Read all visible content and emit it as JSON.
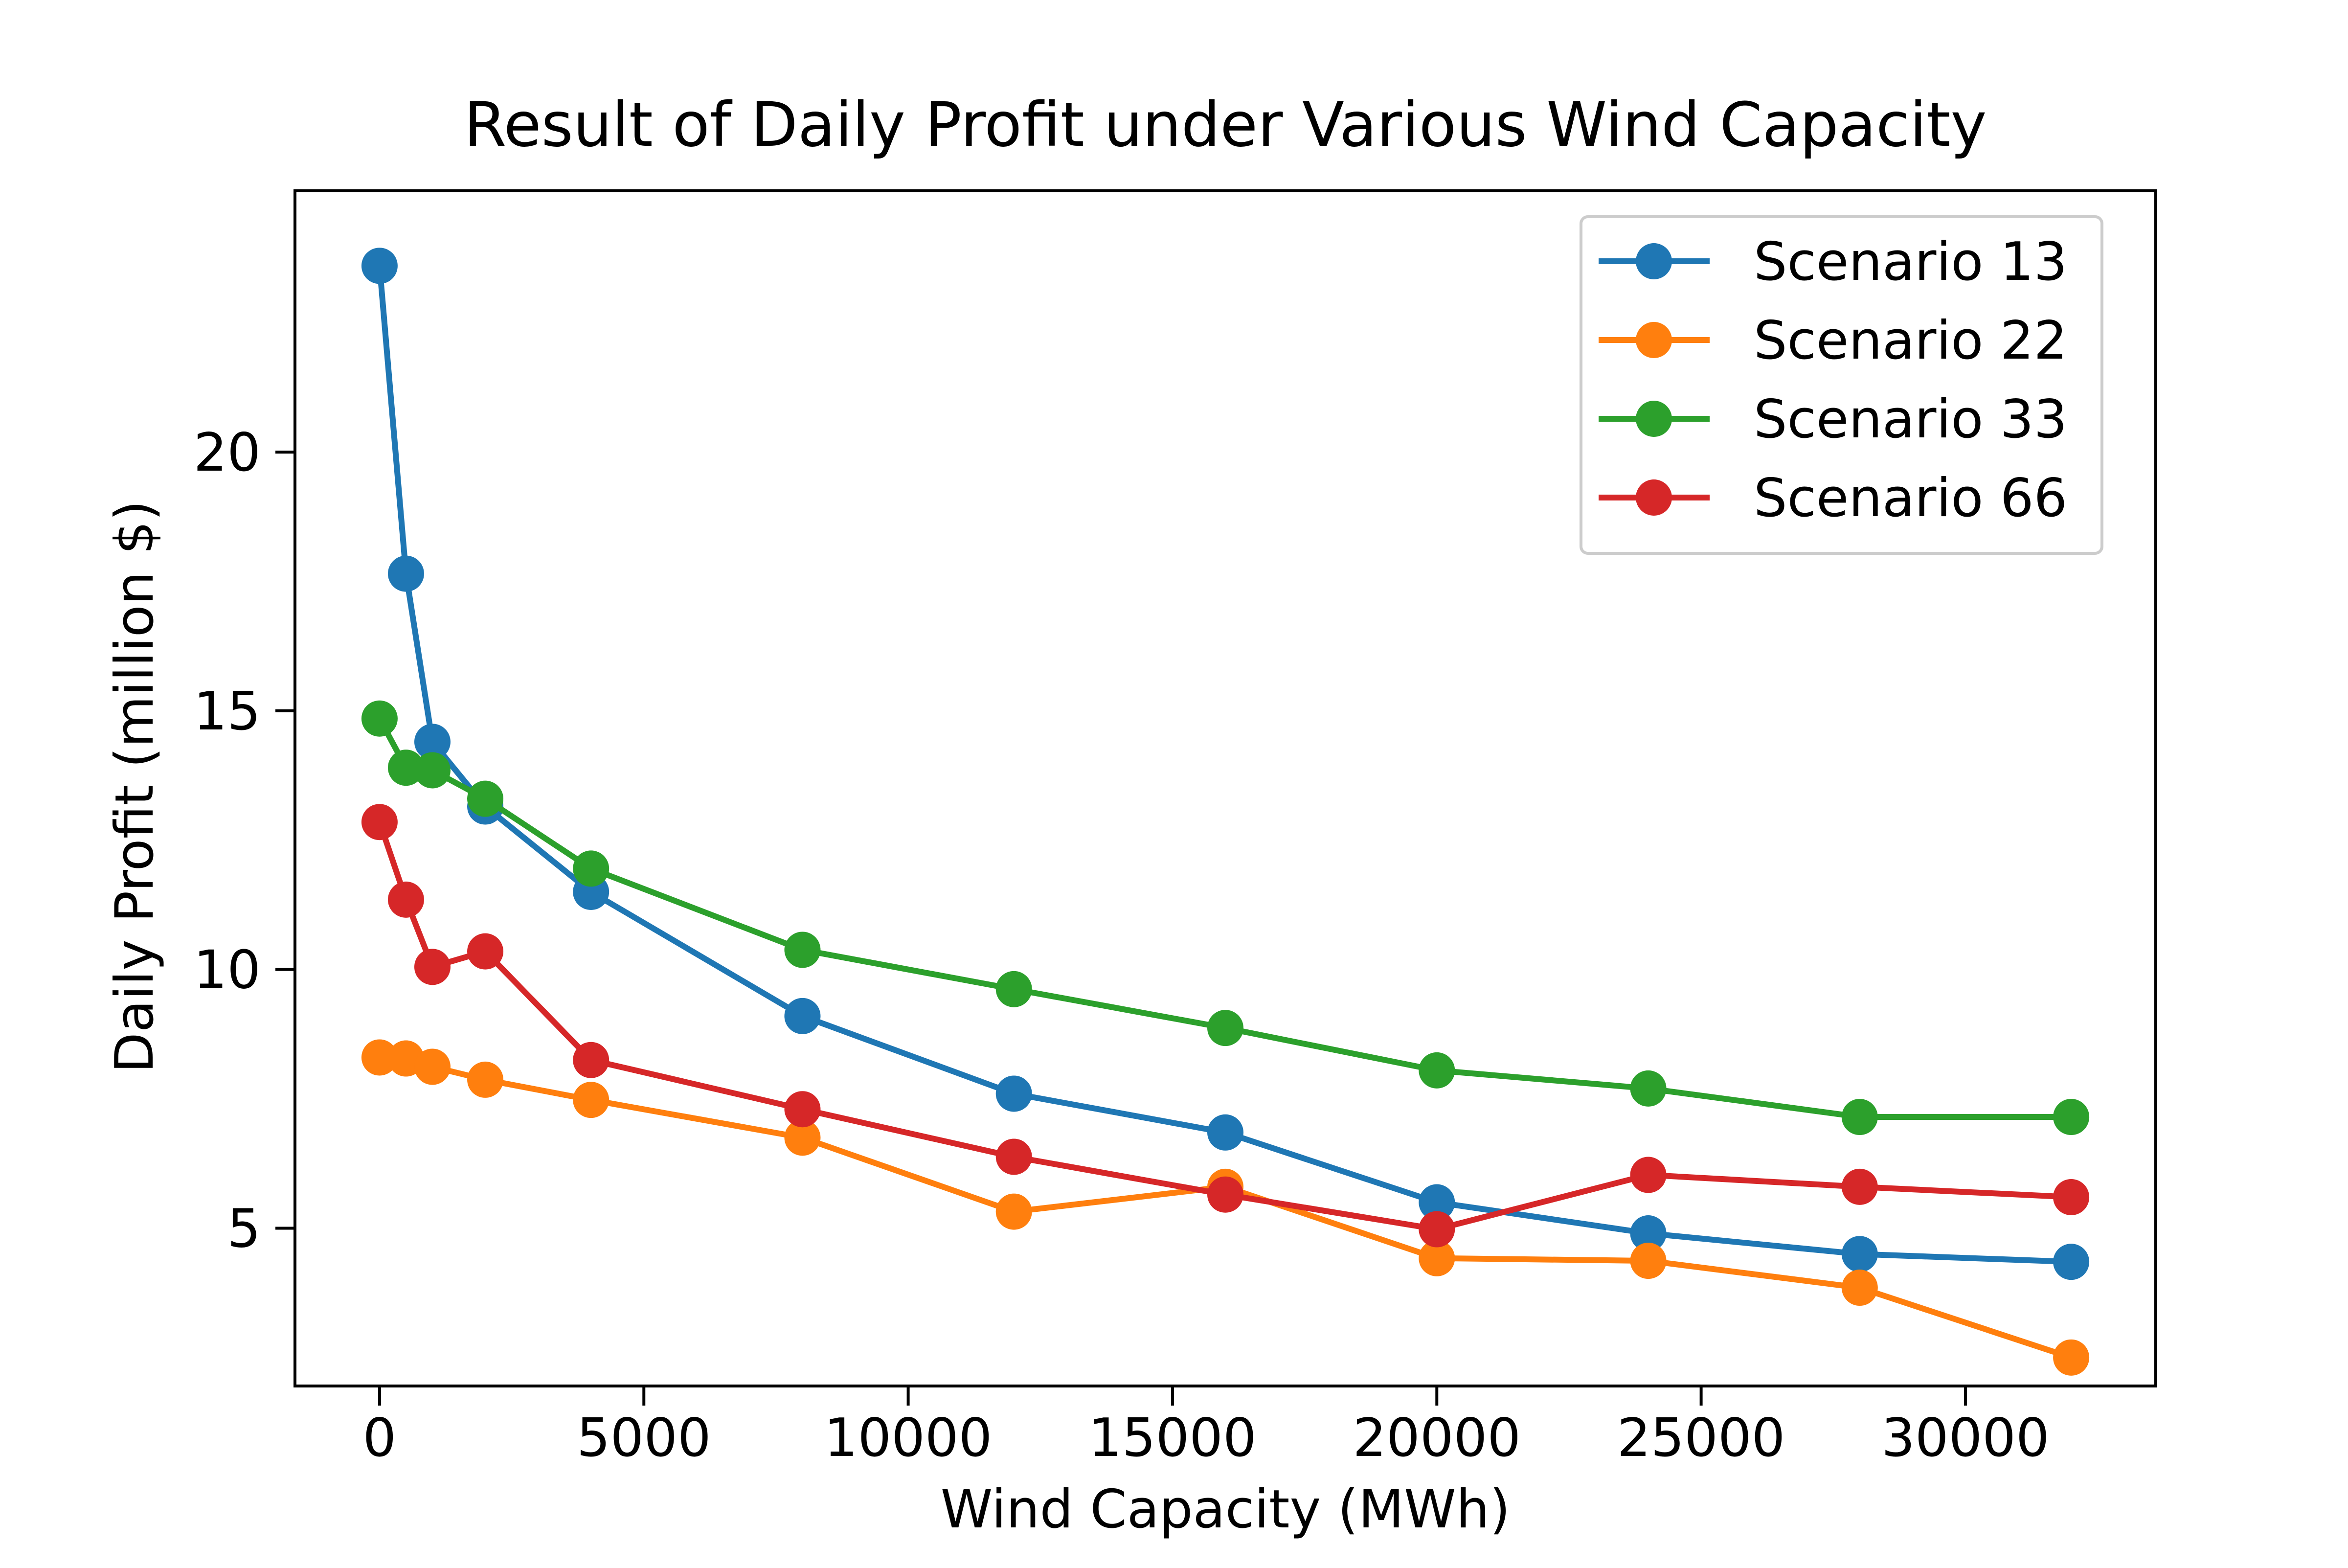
{
  "chart_data": {
    "type": "line",
    "title": "Result of Daily Profit under Various Wind Capacity",
    "xlabel": "Wind Capacity (MWh)",
    "ylabel": "Daily Profit (million $)",
    "xlim": [
      -1600,
      33600
    ],
    "ylim": [
      1.95,
      25.05
    ],
    "xticks": [
      0,
      5000,
      10000,
      15000,
      20000,
      25000,
      30000
    ],
    "yticks": [
      5,
      10,
      15,
      20
    ],
    "x": [
      0,
      500,
      1000,
      2000,
      4000,
      8000,
      12000,
      16000,
      20000,
      24000,
      28000,
      32000
    ],
    "grid": false,
    "legend_position": "top-right",
    "series": [
      {
        "name": "Scenario 13",
        "color": "#1f77b4",
        "values": [
          23.6,
          17.65,
          14.4,
          13.15,
          11.5,
          9.1,
          7.6,
          6.85,
          5.5,
          4.9,
          4.5,
          4.35
        ]
      },
      {
        "name": "Scenario 22",
        "color": "#ff7f0e",
        "values": [
          8.3,
          8.28,
          8.12,
          7.87,
          7.48,
          6.75,
          5.32,
          5.8,
          4.42,
          4.37,
          3.85,
          2.5
        ]
      },
      {
        "name": "Scenario 33",
        "color": "#2ca02c",
        "values": [
          14.85,
          13.9,
          13.85,
          13.3,
          11.95,
          10.38,
          9.62,
          8.87,
          8.05,
          7.7,
          7.15,
          7.15
        ]
      },
      {
        "name": "Scenario 66",
        "color": "#d62728",
        "values": [
          12.85,
          11.35,
          10.05,
          10.35,
          8.25,
          7.3,
          6.38,
          5.65,
          4.98,
          6.03,
          5.8,
          5.6
        ]
      }
    ]
  }
}
